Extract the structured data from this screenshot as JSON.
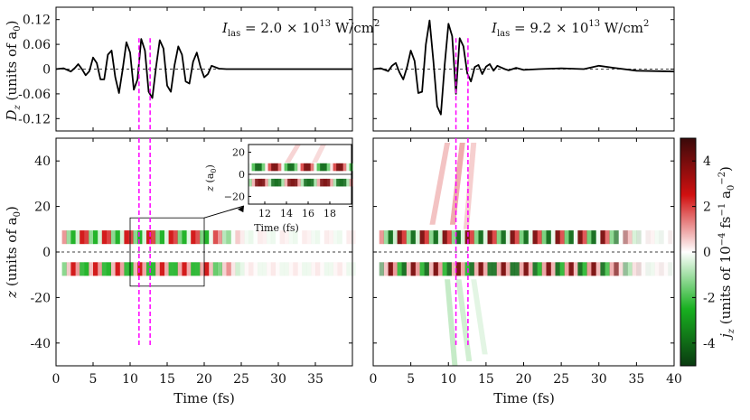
{
  "chart_data": [
    {
      "type": "line",
      "panel": "top-left",
      "annotation": {
        "label": "I",
        "sub": "las",
        "text": " = 2.0 × 10",
        "exp": "13",
        "unit": " W/cm",
        "unit_exp": "2"
      },
      "ylabel": {
        "main": "D",
        "sub": "z",
        "rest": " (units of a",
        "rest_sub": "0",
        "close": ")"
      },
      "xlim": [
        0,
        40
      ],
      "ylim": [
        -0.15,
        0.15
      ],
      "yticks": [
        0.12,
        0.06,
        0,
        -0.06,
        -0.12
      ],
      "ytick_labels": [
        "0.12",
        "0.06",
        "0",
        "-0.06",
        "-0.12"
      ],
      "series": [
        {
          "style": "solid",
          "x": [
            0,
            1,
            2,
            2.5,
            3,
            3.5,
            4,
            4.5,
            5,
            5.5,
            6,
            6.5,
            7,
            7.5,
            8,
            8.5,
            9,
            9.5,
            10,
            10.5,
            11,
            11.5,
            12,
            12.5,
            13,
            13.5,
            14,
            14.5,
            15,
            15.5,
            16,
            16.5,
            17,
            17.5,
            18,
            18.5,
            19,
            19.5,
            20,
            20.5,
            21,
            22,
            23,
            25,
            30,
            35,
            40
          ],
          "y": [
            0,
            0.002,
            -0.006,
            0.002,
            0.012,
            0.0,
            -0.015,
            -0.005,
            0.028,
            0.015,
            -0.025,
            -0.025,
            0.035,
            0.045,
            -0.02,
            -0.058,
            0.0,
            0.065,
            0.04,
            -0.05,
            -0.025,
            0.073,
            0.045,
            -0.055,
            -0.07,
            0.005,
            0.07,
            0.05,
            -0.04,
            -0.055,
            0.01,
            0.055,
            0.035,
            -0.03,
            -0.035,
            0.018,
            0.04,
            0.005,
            -0.02,
            -0.012,
            0.008,
            0.001,
            0,
            0,
            0,
            0,
            0
          ]
        },
        {
          "style": "dashed",
          "x": [
            0,
            40
          ],
          "y": [
            0,
            0
          ]
        }
      ],
      "markers_fs": [
        11.2,
        12.7
      ]
    },
    {
      "type": "line",
      "panel": "top-right",
      "annotation": {
        "label": "I",
        "sub": "las",
        "text": " = 9.2 × 10",
        "exp": "13",
        "unit": " W/cm",
        "unit_exp": "2"
      },
      "xlim": [
        0,
        40
      ],
      "ylim": [
        -0.15,
        0.15
      ],
      "series": [
        {
          "style": "solid",
          "x": [
            0,
            1,
            2,
            2.5,
            3,
            3.5,
            4,
            4.5,
            5,
            5.5,
            6,
            6.5,
            7,
            7.5,
            8,
            8.5,
            9,
            9.5,
            10,
            10.5,
            11,
            11.5,
            12,
            12.5,
            13,
            13.5,
            14,
            14.5,
            15,
            15.5,
            16,
            16.5,
            17,
            17.5,
            18,
            19,
            20,
            22,
            25,
            28,
            30,
            32,
            35,
            38,
            40
          ],
          "y": [
            0,
            0.002,
            -0.005,
            0.008,
            0.015,
            -0.008,
            -0.025,
            0.005,
            0.045,
            0.02,
            -0.058,
            -0.055,
            0.06,
            0.118,
            0.02,
            -0.09,
            -0.11,
            0.01,
            0.11,
            0.08,
            -0.06,
            0.075,
            0.055,
            -0.01,
            -0.03,
            0.005,
            0.01,
            -0.012,
            0.006,
            0.012,
            -0.004,
            0.008,
            0.004,
            0.0,
            -0.003,
            0.003,
            -0.002,
            0.0,
            0.002,
            0.0,
            0.008,
            0.003,
            -0.004,
            -0.005,
            -0.006
          ]
        },
        {
          "style": "dashed",
          "x": [
            0,
            40
          ],
          "y": [
            0,
            0
          ]
        }
      ],
      "markers_fs": [
        11.0,
        12.6
      ]
    },
    {
      "type": "heatmap",
      "panel": "bottom-left",
      "xlabel": "Time (fs)",
      "ylabel": {
        "main": "z",
        "rest": " (units of a",
        "rest_sub": "0",
        "close": ")"
      },
      "xlim": [
        0,
        40
      ],
      "ylim": [
        -50,
        50
      ],
      "xticks": [
        0,
        5,
        10,
        15,
        20,
        25,
        30,
        35
      ],
      "yticks": [
        40,
        20,
        0,
        -20,
        -40
      ],
      "ytick_labels": [
        "40",
        "20",
        "0",
        "-20",
        "-40"
      ],
      "band_centers_z": [
        6.5,
        -7.5
      ],
      "zoom_box": {
        "t": [
          10,
          20
        ],
        "z": [
          -15,
          15
        ]
      },
      "markers_fs": [
        11.2,
        12.7
      ],
      "inset": {
        "xlabel": "Time (fs)",
        "ylabel": {
          "main": "z",
          "rest": " (a",
          "rest_sub": "0",
          "close": ")"
        },
        "xlim": [
          10.5,
          20
        ],
        "ylim": [
          -27,
          27
        ],
        "xticks": [
          12,
          14,
          16,
          18
        ],
        "yticks": [
          20,
          0,
          -20
        ],
        "ytick_labels": [
          "20",
          "0",
          "−20"
        ]
      }
    },
    {
      "type": "heatmap",
      "panel": "bottom-right",
      "xlabel": "Time (fs)",
      "xlim": [
        0,
        40
      ],
      "ylim": [
        -50,
        50
      ],
      "xticks": [
        0,
        5,
        10,
        15,
        20,
        25,
        30,
        35,
        40
      ],
      "band_centers_z": [
        6.5,
        -7.5
      ],
      "markers_fs": [
        11.0,
        12.6
      ]
    }
  ],
  "colorbar": {
    "label": {
      "main": "j",
      "sub": "z",
      "rest": " (units of 10",
      "exp1": "−4",
      "mid": " fs",
      "exp2": "−1",
      "mid2": " a",
      "sub2": "0",
      "exp3": "−2",
      "close": ")"
    },
    "range": [
      -5,
      5
    ],
    "ticks": [
      4,
      2,
      0,
      -2,
      -4
    ],
    "tick_labels": [
      "4",
      "2",
      "0",
      "-2",
      "-4"
    ],
    "colors": {
      "max": "#3a0a0a",
      "pos": "#d11010",
      "zero": "#ffffff",
      "neg": "#18b020",
      "min": "#0a3a10"
    }
  },
  "colors": {
    "line": "#000000",
    "marker": "#ff00ff"
  }
}
